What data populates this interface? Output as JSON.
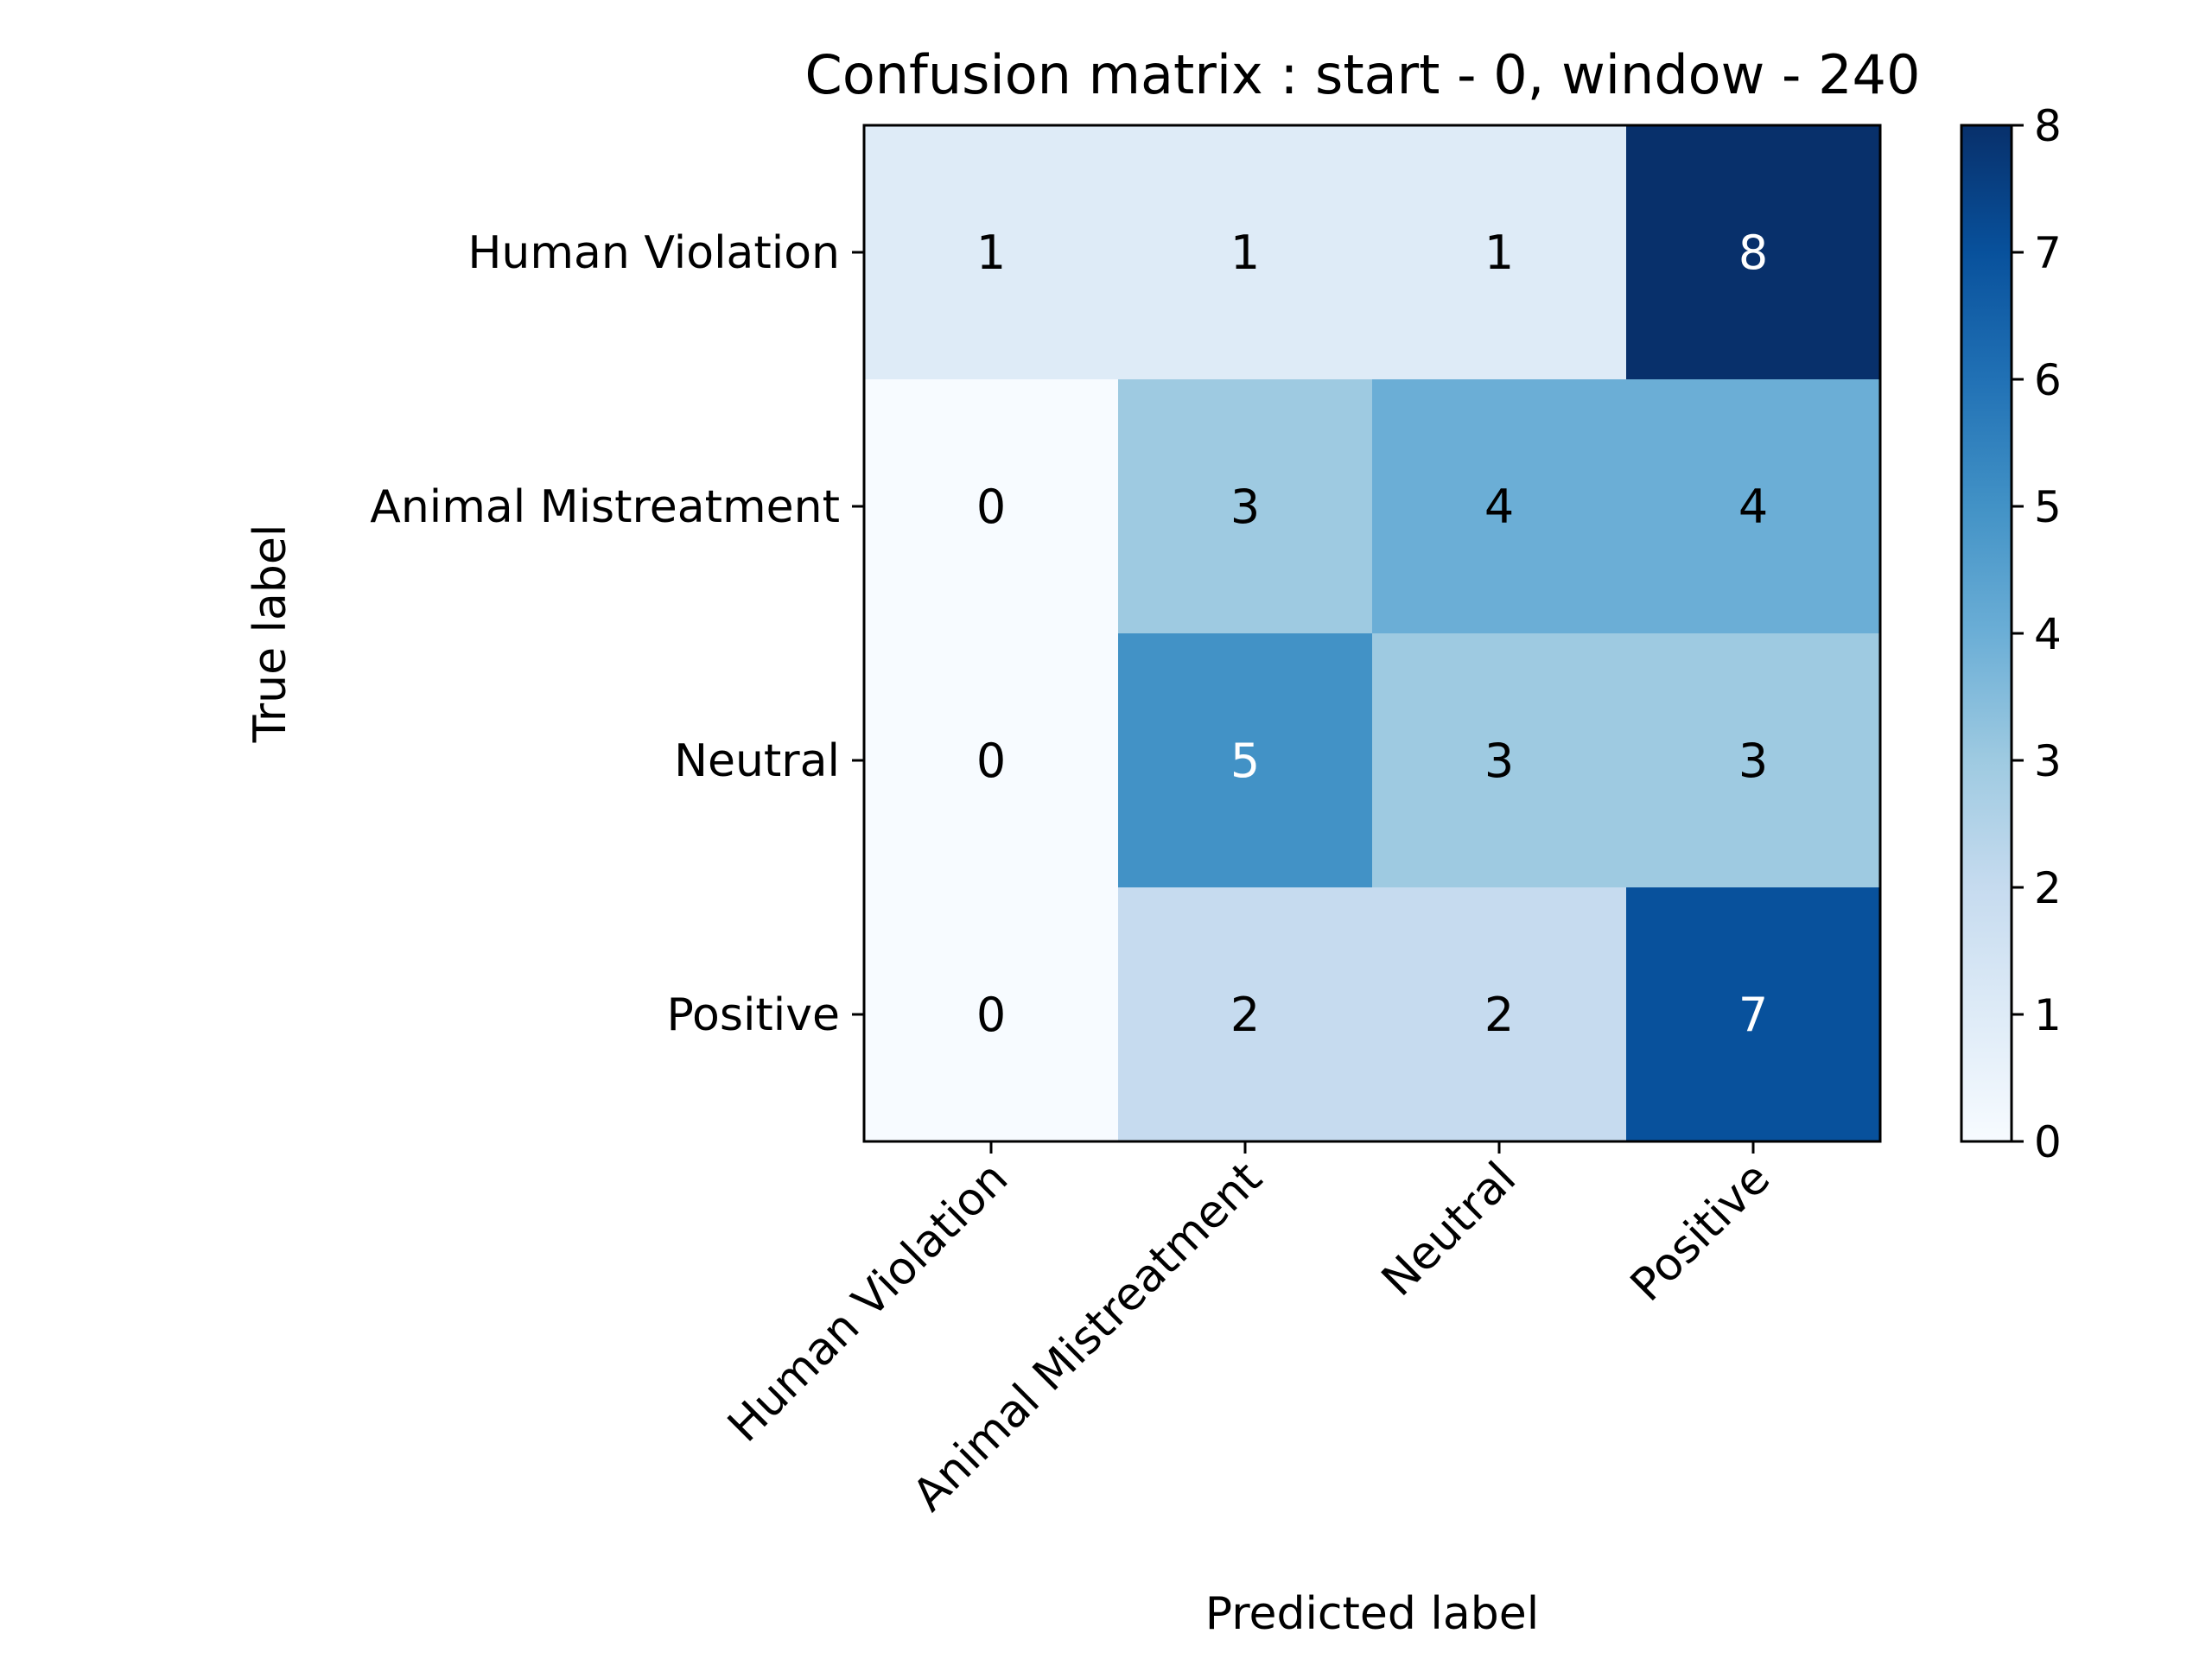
{
  "chart_data": {
    "type": "heatmap",
    "title": "Confusion matrix : start - 0, window - 240",
    "xlabel": "Predicted label",
    "ylabel": "True label",
    "row_labels": [
      "Human Violation",
      "Animal Mistreatment",
      "Neutral",
      "Positive"
    ],
    "col_labels": [
      "Human Violation",
      "Animal Mistreatment",
      "Neutral",
      "Positive"
    ],
    "matrix": [
      [
        1,
        1,
        1,
        8
      ],
      [
        0,
        3,
        4,
        4
      ],
      [
        0,
        5,
        3,
        3
      ],
      [
        0,
        2,
        2,
        7
      ]
    ],
    "colormap": "Blues",
    "colorbar": {
      "range": [
        0,
        8
      ],
      "ticks": [
        "0",
        "1",
        "2",
        "3",
        "4",
        "5",
        "6",
        "7",
        "8"
      ]
    },
    "colors": {
      "scale": [
        "#f7fbff",
        "#deebf7",
        "#c6dbef",
        "#9ecae1",
        "#6baed6",
        "#4292c6",
        "#2171b5",
        "#08519c",
        "#08306b"
      ],
      "text_dark": "#000000",
      "text_light": "#ffffff"
    }
  }
}
